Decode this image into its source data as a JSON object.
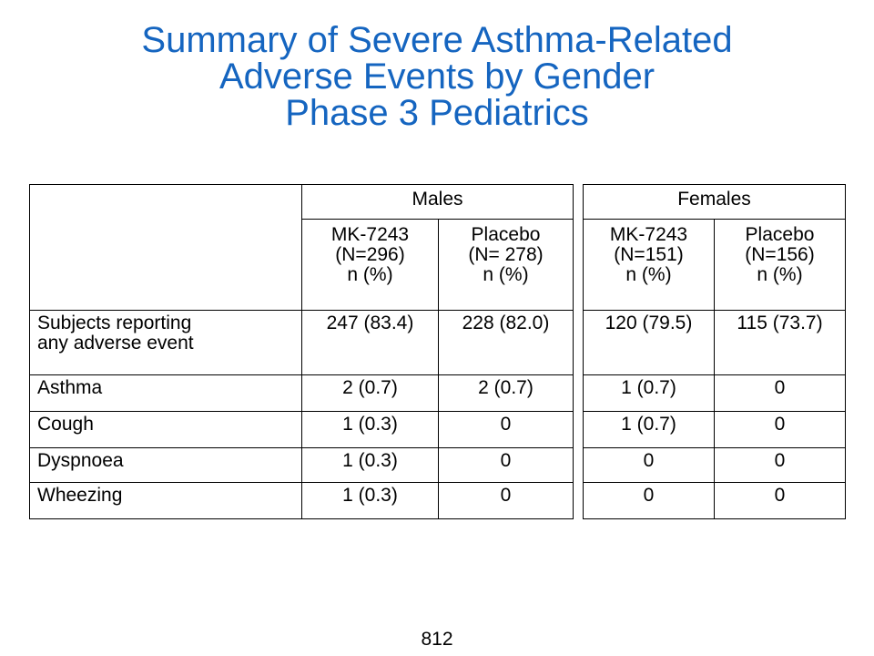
{
  "title": {
    "line1": "Summary of Severe Asthma-Related",
    "line2": "Adverse Events by Gender",
    "line3": "Phase 3 Pediatrics"
  },
  "males": {
    "group_label": "Males",
    "columns": [
      {
        "line1": "MK-7243",
        "line2": "(N=296)",
        "line3": "n (%)"
      },
      {
        "line1": "Placebo",
        "line2": "(N= 278)",
        "line3": "n (%)"
      }
    ]
  },
  "females": {
    "group_label": "Females",
    "columns": [
      {
        "line1": "MK-7243",
        "line2": "(N=151)",
        "line3": "n (%)"
      },
      {
        "line1": "Placebo",
        "line2": "(N=156)",
        "line3": "n (%)"
      }
    ]
  },
  "rows": [
    {
      "label_line1": "Subjects reporting",
      "label_line2": "any adverse event",
      "values": [
        "247 (83.4)",
        "228 (82.0)",
        "120 (79.5)",
        "115 (73.7)"
      ]
    },
    {
      "label_line1": "Asthma",
      "values": [
        "2 (0.7)",
        "2 (0.7)",
        "1 (0.7)",
        "0"
      ]
    },
    {
      "label_line1": "Cough",
      "values": [
        "1 (0.3)",
        "0",
        "1 (0.7)",
        "0"
      ]
    },
    {
      "label_line1": "Dyspnoea",
      "values": [
        "1 (0.3)",
        "0",
        "0",
        "0"
      ]
    },
    {
      "label_line1": "Wheezing",
      "values": [
        "1 (0.3)",
        "0",
        "0",
        "0"
      ]
    }
  ],
  "page_number": "812"
}
